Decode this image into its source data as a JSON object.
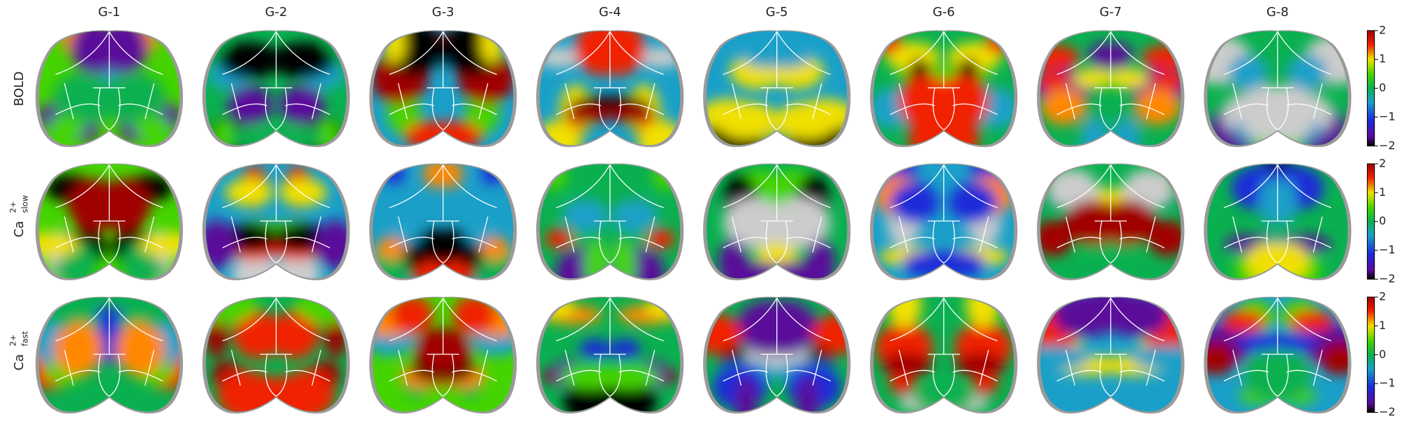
{
  "columns": [
    "G-1",
    "G-2",
    "G-3",
    "G-4",
    "G-5",
    "G-6",
    "G-7",
    "G-8"
  ],
  "rows": [
    {
      "base": "BOLD"
    },
    {
      "base": "Ca",
      "sup": "2+",
      "sub": "slow"
    },
    {
      "base": "Ca",
      "sup": "2+",
      "sub": "fast"
    }
  ],
  "colorbar": {
    "ticks": [
      2,
      1,
      0,
      {
        "value": -1,
        "label": "−1"
      },
      {
        "value": -2,
        "label": "−2"
      }
    ]
  }
}
